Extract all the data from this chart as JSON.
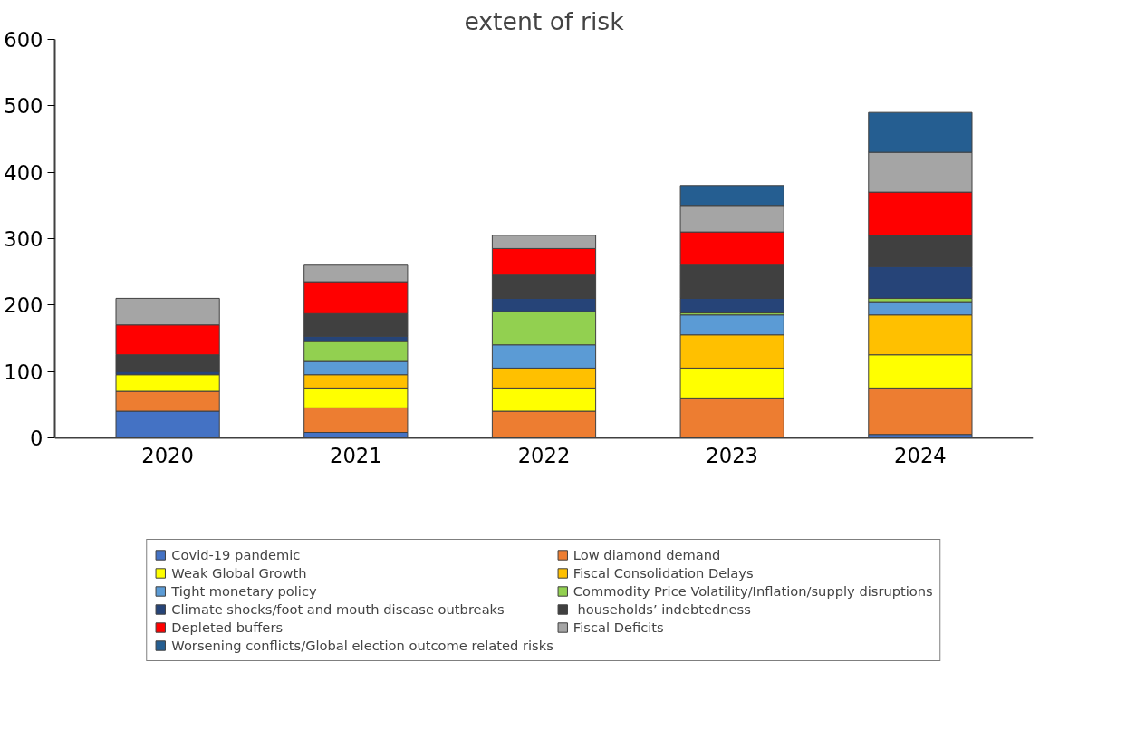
{
  "chart_data": {
    "type": "bar",
    "title": "extent of risk",
    "stacked": true,
    "categories": [
      "2020",
      "2021",
      "2022",
      "2023",
      "2024"
    ],
    "ylim": [
      0,
      600
    ],
    "yticks": [
      0,
      100,
      200,
      300,
      400,
      500,
      600
    ],
    "grid": false,
    "legend": "bottom",
    "series": [
      {
        "name": "Covid-19 pandemic",
        "color": "#4472c4",
        "values": [
          40,
          8,
          null,
          null,
          5
        ]
      },
      {
        "name": "Low diamond demand",
        "color": "#ed7d31",
        "values": [
          30,
          37,
          40,
          60,
          70
        ]
      },
      {
        "name": "Weak Global Growth",
        "color": "#ffff00",
        "values": [
          25,
          30,
          35,
          45,
          50
        ]
      },
      {
        "name": "Fiscal Consolidation Delays",
        "color": "#ffc000",
        "values": [
          null,
          20,
          30,
          50,
          60
        ]
      },
      {
        "name": "Tight monetary policy",
        "color": "#5b9bd5",
        "values": [
          null,
          20,
          35,
          30,
          20
        ]
      },
      {
        "name": "Commodity Price Volatility/Inflation/supply disruptions",
        "color": "#92d050",
        "values": [
          null,
          30,
          50,
          3,
          5
        ]
      },
      {
        "name": "Climate shocks/foot and mouth disease outbreaks",
        "color": "#264478",
        "values": [
          5,
          8,
          20,
          22,
          48
        ]
      },
      {
        "name": " households’ indebtedness",
        "color": "#404040",
        "values": [
          25,
          34,
          35,
          50,
          47
        ]
      },
      {
        "name": "Depleted buffers",
        "color": "#ff0000",
        "values": [
          45,
          48,
          40,
          50,
          65
        ]
      },
      {
        "name": "Fiscal Deficits",
        "color": "#a5a5a5",
        "values": [
          40,
          25,
          20,
          40,
          60
        ]
      },
      {
        "name": "Worsening conflicts/Global election outcome related risks",
        "color": "#255e91",
        "values": [
          null,
          null,
          null,
          30,
          60
        ]
      }
    ]
  }
}
